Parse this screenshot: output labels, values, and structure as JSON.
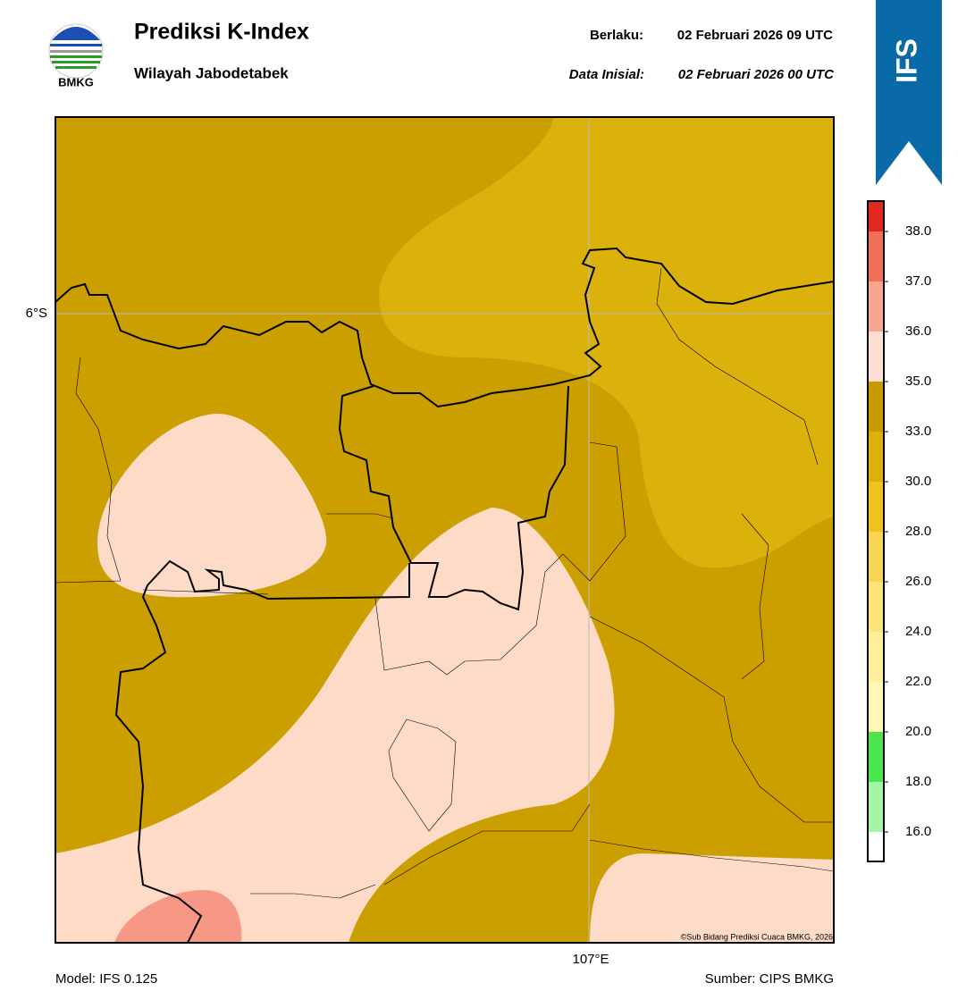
{
  "header": {
    "logo_text": "BMKG",
    "title": "Prediksi K-Index",
    "subtitle": "Wilayah Jabodetabek",
    "valid_label": "Berlaku:",
    "valid_time": "02 Februari 2026 09 UTC",
    "init_label": "Data Inisial:",
    "init_time": "02 Februari 2026 00 UTC"
  },
  "badge": "IFS",
  "map": {
    "lat_label": "6°S",
    "lon_label": "107°E",
    "credit": "©Sub Bidang Prediksi Cuaca BMKG, 2026"
  },
  "colorbar": {
    "ticks": [
      {
        "value": 16,
        "label": "16.0"
      },
      {
        "value": 18,
        "label": "18.0"
      },
      {
        "value": 20,
        "label": "20.0"
      },
      {
        "value": 22,
        "label": "22.0"
      },
      {
        "value": 24,
        "label": "24.0"
      },
      {
        "value": 26,
        "label": "26.0"
      },
      {
        "value": 28,
        "label": "28.0"
      },
      {
        "value": 30,
        "label": "30.0"
      },
      {
        "value": 33,
        "label": "33.0"
      },
      {
        "value": 35,
        "label": "35.0"
      },
      {
        "value": 36,
        "label": "36.0"
      },
      {
        "value": 37,
        "label": "37.0"
      },
      {
        "value": 38,
        "label": "38.0"
      }
    ],
    "colors": [
      "#ffffff",
      "#a6f5a6",
      "#4ae54a",
      "#fff8b8",
      "#fff09c",
      "#fde37c",
      "#f7d456",
      "#efc21e",
      "#dcb00a",
      "#c99a00",
      "#fde0d2",
      "#f8a592",
      "#f07058",
      "#e2281e"
    ]
  },
  "footer": {
    "model": "Model: IFS 0.125",
    "source": "Sumber: CIPS BMKG"
  }
}
